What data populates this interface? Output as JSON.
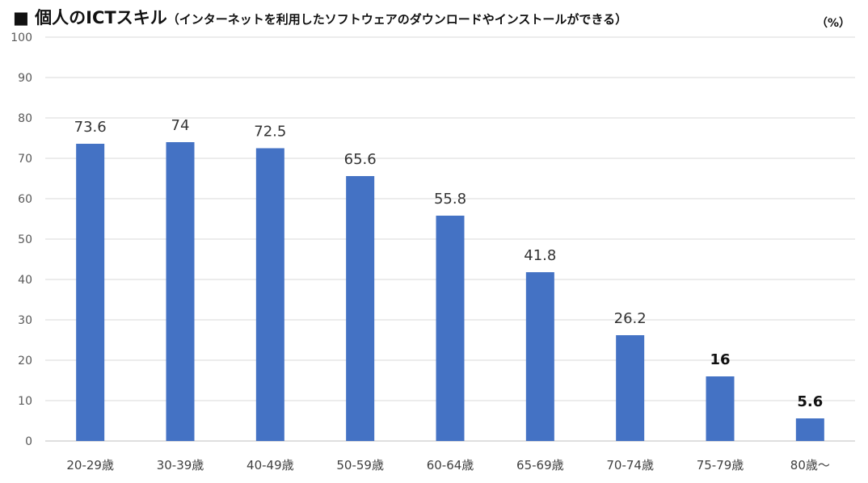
{
  "header": {
    "title": "■ 個人のICTスキル",
    "subtitle": "（インターネットを利用したソフトウェアのダウンロードやインストールができる）",
    "unit": "（%）"
  },
  "colors": {
    "bar": "#4472c4",
    "grid": "#d9d9d9"
  },
  "chart_data": {
    "type": "bar",
    "title": "■ 個人のICTスキル",
    "subtitle": "（インターネットを利用したソフトウェアのダウンロードやインストールができる）",
    "xlabel": "",
    "ylabel": "（%）",
    "categories": [
      "20-29歳",
      "30-39歳",
      "40-49歳",
      "50-59歳",
      "60-64歳",
      "65-69歳",
      "70-74歳",
      "75-79歳",
      "80歳～"
    ],
    "values": [
      73.6,
      74,
      72.5,
      65.6,
      55.8,
      41.8,
      26.2,
      16,
      5.6
    ],
    "data_labels": [
      "73.6",
      "74",
      "72.5",
      "65.6",
      "55.8",
      "41.8",
      "26.2",
      "16",
      "5.6"
    ],
    "bold_labels": [
      false,
      false,
      false,
      false,
      false,
      false,
      false,
      true,
      true
    ],
    "ylim": [
      0,
      100
    ],
    "yticks": [
      "0",
      "10",
      "20",
      "30",
      "40",
      "50",
      "60",
      "70",
      "80",
      "90",
      "100"
    ],
    "grid": true,
    "legend": "none"
  }
}
